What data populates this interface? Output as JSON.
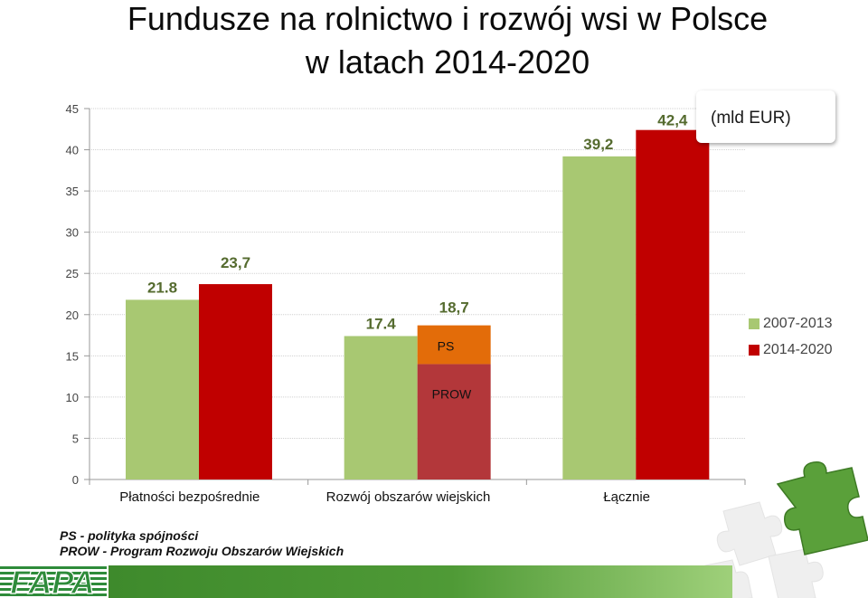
{
  "title_line1": "Fundusze na rolnictwo i rozwój wsi w Polsce",
  "title_line2": "w latach 2014-2020",
  "unit_label": "(mld EUR)",
  "footnotes": {
    "line1": "PS - polityka spójności",
    "line2": "PROW - Program Rozwoju Obszarów Wiejskich"
  },
  "logo_text": "FAPA",
  "colors": {
    "series_2007_2013": "#a8c872",
    "series_2014_2020": "#c00000",
    "ps_segment": "#e36c09",
    "prow_segment": "#b3373a",
    "label_green": "#556b2f"
  },
  "icons": [
    "puzzle-icon"
  ],
  "chart_data": {
    "type": "bar",
    "categories": [
      "Płatności bezpośrednie",
      "Rozwój obszarów wiejskich",
      "Łącznie"
    ],
    "ylim": [
      0,
      45
    ],
    "yticks": [
      0,
      5,
      10,
      15,
      20,
      25,
      30,
      35,
      40,
      45
    ],
    "grid": true,
    "legend_position": "right",
    "series": [
      {
        "name": "2007-2013",
        "values": [
          21.8,
          17.4,
          39.2
        ],
        "labels": [
          "21.8",
          "17.4",
          "39,2"
        ]
      },
      {
        "name": "2014-2020",
        "values": [
          23.7,
          18.7,
          42.4
        ],
        "labels": [
          "23,7",
          "18,7",
          "42,4"
        ],
        "stacked_breakdown": {
          "category": "Rozwój obszarów wiejskich",
          "segments": [
            {
              "name": "PROW",
              "value": 14.0
            },
            {
              "name": "PS",
              "value": 4.7
            }
          ]
        }
      }
    ]
  }
}
